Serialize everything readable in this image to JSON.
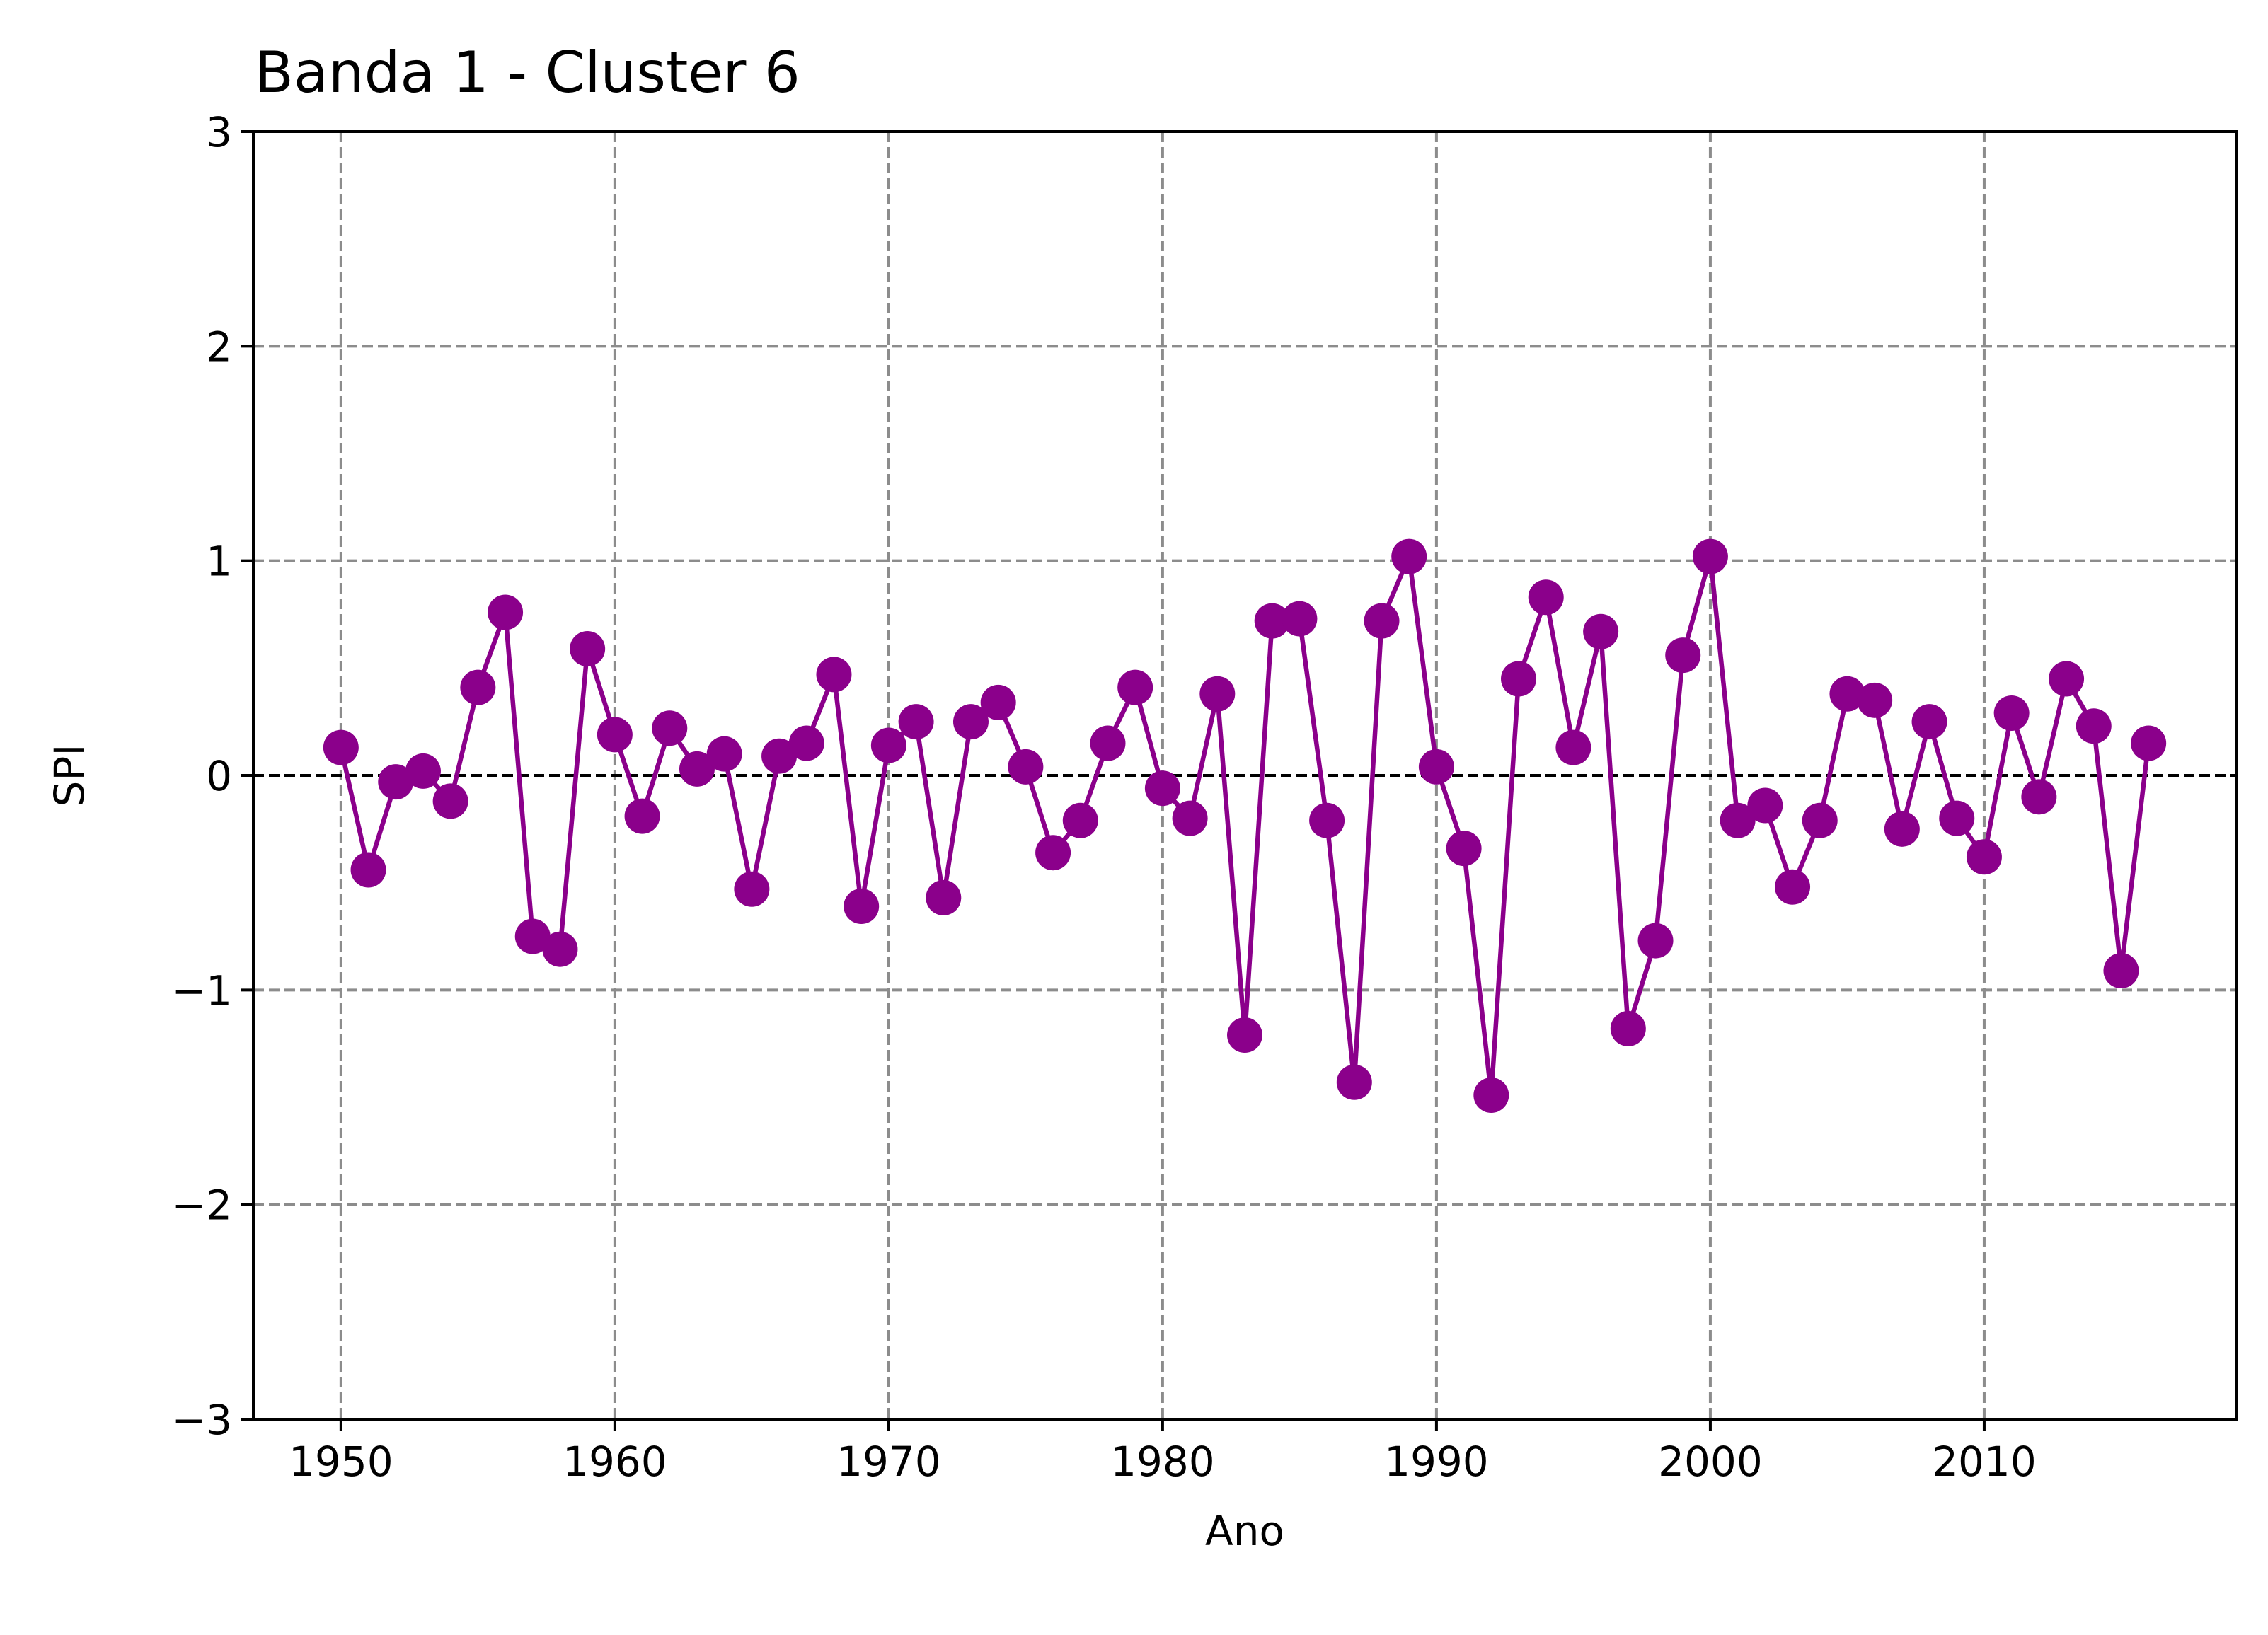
{
  "chart_data": {
    "type": "line",
    "title": "Banda 1 - Cluster 6",
    "xlabel": "Ano",
    "ylabel": "SPI",
    "xlim": [
      1946.8,
      2019.2
    ],
    "ylim": [
      -3,
      3
    ],
    "xticks": [
      1950,
      1960,
      1970,
      1980,
      1990,
      2000,
      2010
    ],
    "yticks": [
      -3,
      -2,
      -1,
      0,
      1,
      2,
      3
    ],
    "ytick_labels": [
      "−3",
      "−2",
      "−1",
      "0",
      "1",
      "2",
      "3"
    ],
    "grid": true,
    "reference_line": 0,
    "colors": {
      "series": "#8b008b",
      "grid": "#8c8c8c",
      "reference": "#000000",
      "axes": "#000000"
    },
    "series": [
      {
        "x": [
          1950,
          1951,
          1952,
          1953,
          1954,
          1955,
          1956,
          1957,
          1958,
          1959,
          1960,
          1961,
          1962,
          1963,
          1964,
          1965,
          1966,
          1967,
          1968,
          1969,
          1970,
          1971,
          1972,
          1973,
          1974,
          1975,
          1976,
          1977,
          1978,
          1979,
          1980,
          1981,
          1982,
          1983,
          1984,
          1985,
          1986,
          1987,
          1988,
          1989,
          1990,
          1991,
          1992,
          1993,
          1994,
          1995,
          1996,
          1997,
          1998,
          1999,
          2000,
          2001,
          2002,
          2003,
          2004,
          2005,
          2006,
          2007,
          2008,
          2009,
          2010,
          2011,
          2012,
          2013,
          2014,
          2015,
          2016
        ],
        "values": [
          0.13,
          -0.44,
          -0.03,
          0.02,
          -0.12,
          0.41,
          0.76,
          -0.75,
          -0.81,
          0.59,
          0.19,
          -0.19,
          0.22,
          0.03,
          0.1,
          -0.53,
          0.09,
          0.15,
          0.47,
          -0.61,
          0.14,
          0.25,
          -0.57,
          0.25,
          0.34,
          0.04,
          -0.36,
          -0.21,
          0.15,
          0.41,
          -0.06,
          -0.2,
          0.38,
          -1.21,
          0.72,
          0.73,
          -0.21,
          -1.43,
          0.72,
          1.02,
          0.04,
          -0.34,
          -1.49,
          0.45,
          0.83,
          0.13,
          0.67,
          -1.18,
          -0.77,
          0.56,
          1.02,
          -0.21,
          -0.14,
          -0.52,
          -0.21,
          0.38,
          0.35,
          -0.25,
          0.25,
          -0.2,
          -0.38,
          0.29,
          -0.1,
          0.45,
          0.23,
          -0.91,
          0.15
        ]
      }
    ]
  }
}
